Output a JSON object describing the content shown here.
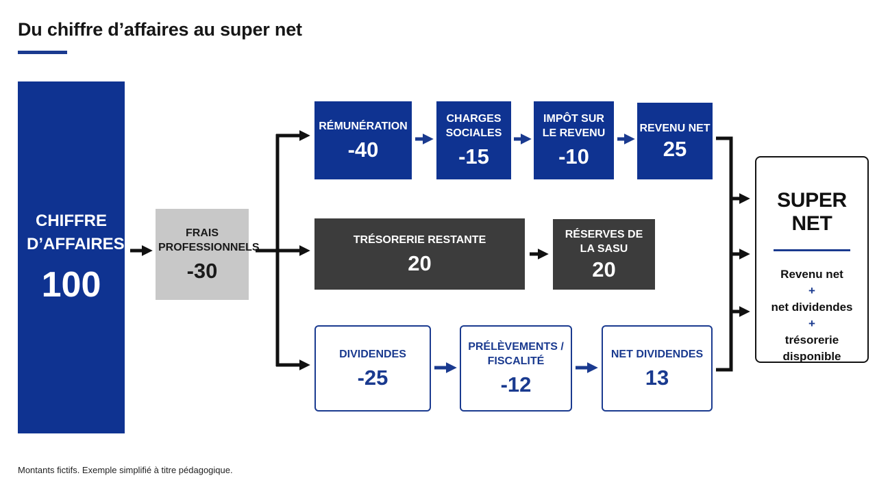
{
  "title": "Du chiffre d’affaires au super net",
  "footnote": "Montants fictifs. Exemple simplifié à titre pédagogique.",
  "nodes": {
    "chiffre_affaires": {
      "label": "CHIFFRE D’AFFAIRES",
      "value": "100"
    },
    "frais_pro": {
      "label": "FRAIS PROFESSIONNELS",
      "value": "-30"
    },
    "remuneration": {
      "label": "RÉMUNÉRATION",
      "value": "-40"
    },
    "charges_sociales": {
      "label": "CHARGES SOCIALES",
      "value": "-15"
    },
    "impot_revenu": {
      "label": "IMPÔT SUR LE REVENU",
      "value": "-10"
    },
    "revenu_net": {
      "label": "REVENU NET",
      "value": "25"
    },
    "tresorerie_restante": {
      "label": "TRÉSORERIE RESTANTE",
      "value": "20"
    },
    "reserves_sasu": {
      "label": "RÉSERVES DE LA SASU",
      "value": "20"
    },
    "dividendes": {
      "label": "DIVIDENDES",
      "value": "-25"
    },
    "prelevements": {
      "label": "PRÉLÈVEMENTS / FISCALITÉ",
      "value": "-12"
    },
    "net_dividendes": {
      "label": "NET DIVIDENDES",
      "value": "13"
    }
  },
  "super_net": {
    "title": "SUPER NET",
    "line1": "Revenu net",
    "plus1": "+",
    "line2": "net dividendes",
    "plus2": "+",
    "line3": "trésorerie disponible"
  },
  "colors": {
    "navy": "#0f3391",
    "dark_gray": "#3c3c3c",
    "light_gray": "#c8c8c8",
    "arrow_navy": "#1a3a8f",
    "arrow_black": "#111111"
  }
}
